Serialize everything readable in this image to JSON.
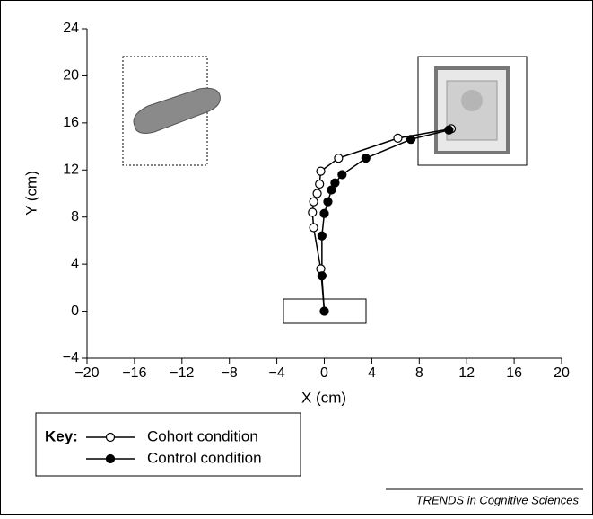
{
  "chart_data": {
    "type": "line",
    "xlabel": "X (cm)",
    "ylabel": "Y (cm)",
    "xlim": [
      -20,
      20
    ],
    "xticks": [
      {
        "value": -20,
        "label": "−20"
      },
      {
        "value": -16,
        "label": "−16"
      },
      {
        "value": -12,
        "label": "−12"
      },
      {
        "value": -8,
        "label": "−8"
      },
      {
        "value": -4,
        "label": "−4"
      },
      0,
      4,
      8,
      12,
      16,
      20
    ],
    "ylim": [
      -4,
      24
    ],
    "yticks": [
      {
        "value": -4,
        "label": "−4"
      },
      0,
      4,
      8,
      12,
      16,
      20,
      24
    ],
    "legend_title": "Key:",
    "series": [
      {
        "name": "Cohort condition",
        "color": "#000000",
        "marker": "open",
        "x": [
          0,
          -0.3,
          -0.9,
          -1.0,
          -0.9,
          -0.6,
          -0.4,
          -0.3,
          1.2,
          6.2,
          10.7
        ],
        "values": [
          0,
          3.6,
          7.1,
          8.4,
          9.3,
          10.0,
          10.8,
          11.9,
          13.0,
          14.7,
          15.5
        ]
      },
      {
        "name": "Control condition",
        "color": "#000000",
        "marker": "filled",
        "x": [
          0,
          -0.2,
          -0.2,
          0,
          0.3,
          0.6,
          0.9,
          1.5,
          3.5,
          7.3,
          10.5
        ],
        "values": [
          0,
          3.0,
          6.4,
          8.3,
          9.3,
          10.3,
          10.9,
          11.6,
          13.0,
          14.6,
          15.4
        ]
      }
    ],
    "source": "TRENDS in Cognitive Sciences"
  }
}
